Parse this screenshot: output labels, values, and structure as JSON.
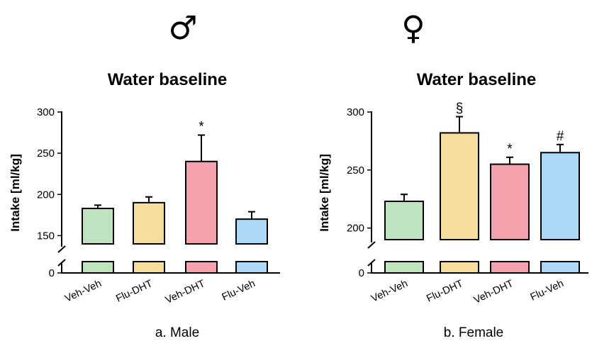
{
  "chart_data": [
    {
      "type": "bar",
      "symbol": "♂",
      "title": "Water baseline",
      "ylabel": "Intake [ml/kg]",
      "caption_letter": "a.",
      "caption_text": "Male",
      "categories": [
        "Veh-Veh",
        "Flu-DHT",
        "Veh-DHT",
        "Flu-Veh"
      ],
      "values": [
        183,
        190,
        240,
        170
      ],
      "errors": [
        4,
        7,
        32,
        9
      ],
      "annotations": [
        "",
        "",
        "*",
        ""
      ],
      "colors": [
        "#bfe3bf",
        "#f6dc9e",
        "#f4a0ad",
        "#aed9f6"
      ],
      "yticks": [
        150,
        200,
        250,
        300
      ],
      "ylim": [
        140,
        300
      ],
      "broken_axis": true,
      "break_label": "0",
      "grid": false
    },
    {
      "type": "bar",
      "symbol": "♀",
      "title": "Water baseline",
      "ylabel": "Intake [ml/kg]",
      "caption_letter": "b.",
      "caption_text": "Female",
      "categories": [
        "Veh-Veh",
        "Flu-DHT",
        "Veh-DHT",
        "Flu-Veh"
      ],
      "values": [
        223,
        282,
        255,
        265
      ],
      "errors": [
        6,
        14,
        6,
        7
      ],
      "annotations": [
        "",
        "§",
        "*",
        "#"
      ],
      "colors": [
        "#bfe3bf",
        "#f6dc9e",
        "#f4a0ad",
        "#aed9f6"
      ],
      "yticks": [
        200,
        250,
        300
      ],
      "ylim": [
        190,
        300
      ],
      "broken_axis": true,
      "break_label": "0",
      "grid": false
    }
  ]
}
